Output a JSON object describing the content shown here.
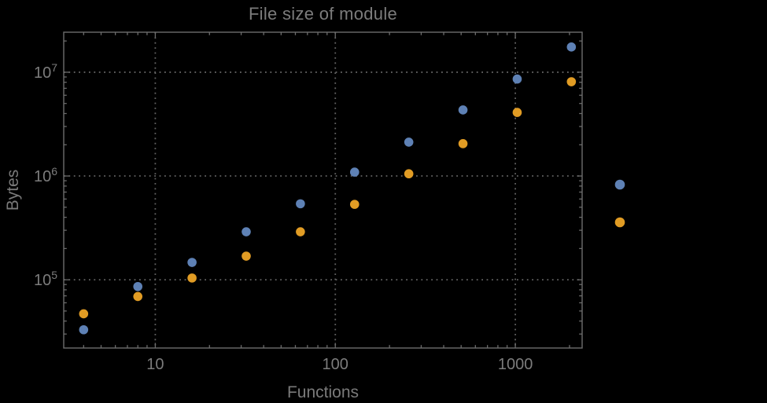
{
  "chart_data": {
    "type": "scatter",
    "title": "File size of module",
    "xlabel": "Functions",
    "ylabel": "Bytes",
    "x_scale": "log",
    "y_scale": "log",
    "grid": true,
    "xlim": [
      3.1,
      2350
    ],
    "ylim": [
      22000,
      24300000
    ],
    "x_axis": {
      "ticks": [
        {
          "value": 10,
          "label": "10"
        },
        {
          "value": 100,
          "label": "100"
        },
        {
          "value": 1000,
          "label": "1000"
        }
      ]
    },
    "y_axis": {
      "ticks": [
        {
          "value": 100000,
          "label": "10^5",
          "mantissa": "10",
          "exponent": "5"
        },
        {
          "value": 1000000,
          "label": "10^6",
          "mantissa": "10",
          "exponent": "6"
        },
        {
          "value": 10000000,
          "label": "10^7",
          "mantissa": "10",
          "exponent": "7"
        }
      ]
    },
    "series": [
      {
        "name": "series-1",
        "color": "#5E81B5",
        "points": [
          [
            4,
            33000
          ],
          [
            8,
            86000
          ],
          [
            16,
            147000
          ],
          [
            32,
            290000
          ],
          [
            64,
            540000
          ],
          [
            128,
            1090000
          ],
          [
            256,
            2120000
          ],
          [
            512,
            4330000
          ],
          [
            1024,
            8600000
          ],
          [
            2048,
            17500000
          ]
        ]
      },
      {
        "name": "series-2",
        "color": "#E19C24",
        "points": [
          [
            4,
            47000
          ],
          [
            8,
            69000
          ],
          [
            16,
            104000
          ],
          [
            32,
            169000
          ],
          [
            64,
            290000
          ],
          [
            128,
            533000
          ],
          [
            256,
            1050000
          ],
          [
            512,
            2050000
          ],
          [
            1024,
            4100000
          ],
          [
            2048,
            8100000
          ]
        ]
      }
    ],
    "legend": {
      "position": "outside-right",
      "entries": [
        {
          "series": "series-1",
          "color": "#5E81B5",
          "label": ""
        },
        {
          "series": "series-2",
          "color": "#E19C24",
          "label": ""
        }
      ]
    }
  },
  "colors": {
    "background": "#000000",
    "frame": "#6c6c6c",
    "gridline": "#636363",
    "text": "#7c7c7c"
  }
}
